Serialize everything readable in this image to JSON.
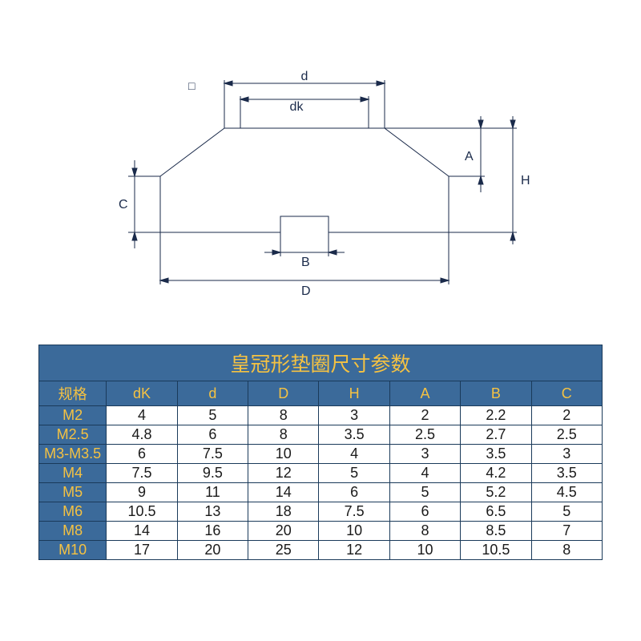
{
  "diagram": {
    "labels": {
      "d": "d",
      "dk": "dk",
      "square": "□",
      "A": "A",
      "H": "H",
      "C": "C",
      "B": "B",
      "D": "D"
    },
    "stroke_color": "#1a2a4a",
    "stroke_width": 1,
    "font_size": 16,
    "font_family": "Arial"
  },
  "table": {
    "title": "皇冠形垫圈尺寸参数",
    "columns": [
      "规格",
      "dK",
      "d",
      "D",
      "H",
      "A",
      "B",
      "C"
    ],
    "rows": [
      [
        "M2",
        "4",
        "5",
        "8",
        "3",
        "2",
        "2.2",
        "2"
      ],
      [
        "M2.5",
        "4.8",
        "6",
        "8",
        "3.5",
        "2.5",
        "2.7",
        "2.5"
      ],
      [
        "M3-M3.5",
        "6",
        "7.5",
        "10",
        "4",
        "3",
        "3.5",
        "3"
      ],
      [
        "M4",
        "7.5",
        "9.5",
        "12",
        "5",
        "4",
        "4.2",
        "3.5"
      ],
      [
        "M5",
        "9",
        "11",
        "14",
        "6",
        "5",
        "5.2",
        "4.5"
      ],
      [
        "M6",
        "10.5",
        "13",
        "18",
        "7.5",
        "6",
        "6.5",
        "5"
      ],
      [
        "M8",
        "14",
        "16",
        "20",
        "10",
        "8",
        "8.5",
        "7"
      ],
      [
        "M10",
        "17",
        "20",
        "25",
        "12",
        "10",
        "10.5",
        "8"
      ]
    ],
    "header_bg": "#3b6a9a",
    "header_fg": "#f5c242",
    "cell_bg": "#ffffff",
    "cell_fg": "#1a1a1a",
    "border_color": "#1a3a5a",
    "title_fontsize": 25,
    "header_fontsize": 18,
    "cell_fontsize": 18
  }
}
